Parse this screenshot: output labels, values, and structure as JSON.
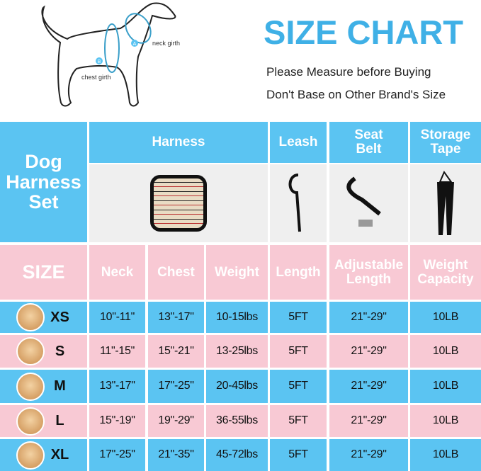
{
  "diagram": {
    "neck_label": "neck girth",
    "chest_label": "chest girth",
    "marker_a": "A",
    "marker_b": "B"
  },
  "header": {
    "title": "SIZE CHART",
    "line1": "Please Measure before Buying",
    "line2": "Don't Base on Other Brand's Size"
  },
  "table": {
    "set_label": "Dog Harness Set",
    "products": [
      "Harness",
      "Leash",
      "Seat Belt",
      "Storage Tape"
    ],
    "size_label": "SIZE",
    "columns": [
      "Neck",
      "Chest",
      "Weight",
      "Length",
      "Adjustable Length",
      "Weight Capacity"
    ],
    "rows": [
      {
        "size": "XS",
        "values": [
          "10\"-11\"",
          "13\"-17\"",
          "10-15lbs",
          "5FT",
          "21\"-29\"",
          "10LB"
        ]
      },
      {
        "size": "S",
        "values": [
          "11\"-15\"",
          "15\"-21\"",
          "13-25lbs",
          "5FT",
          "21\"-29\"",
          "10LB"
        ]
      },
      {
        "size": "M",
        "values": [
          "13\"-17\"",
          "17\"-25\"",
          "20-45lbs",
          "5FT",
          "21\"-29\"",
          "10LB"
        ]
      },
      {
        "size": "L",
        "values": [
          "15\"-19\"",
          "19\"-29\"",
          "36-55lbs",
          "5FT",
          "21\"-29\"",
          "10LB"
        ]
      },
      {
        "size": "XL",
        "values": [
          "17\"-25\"",
          "21\"-35\"",
          "45-72lbs",
          "5FT",
          "21\"-29\"",
          "10LB"
        ]
      }
    ]
  },
  "colors": {
    "blue": "#5bc4f2",
    "pink": "#f8c9d4",
    "title": "#3fb0e6"
  }
}
